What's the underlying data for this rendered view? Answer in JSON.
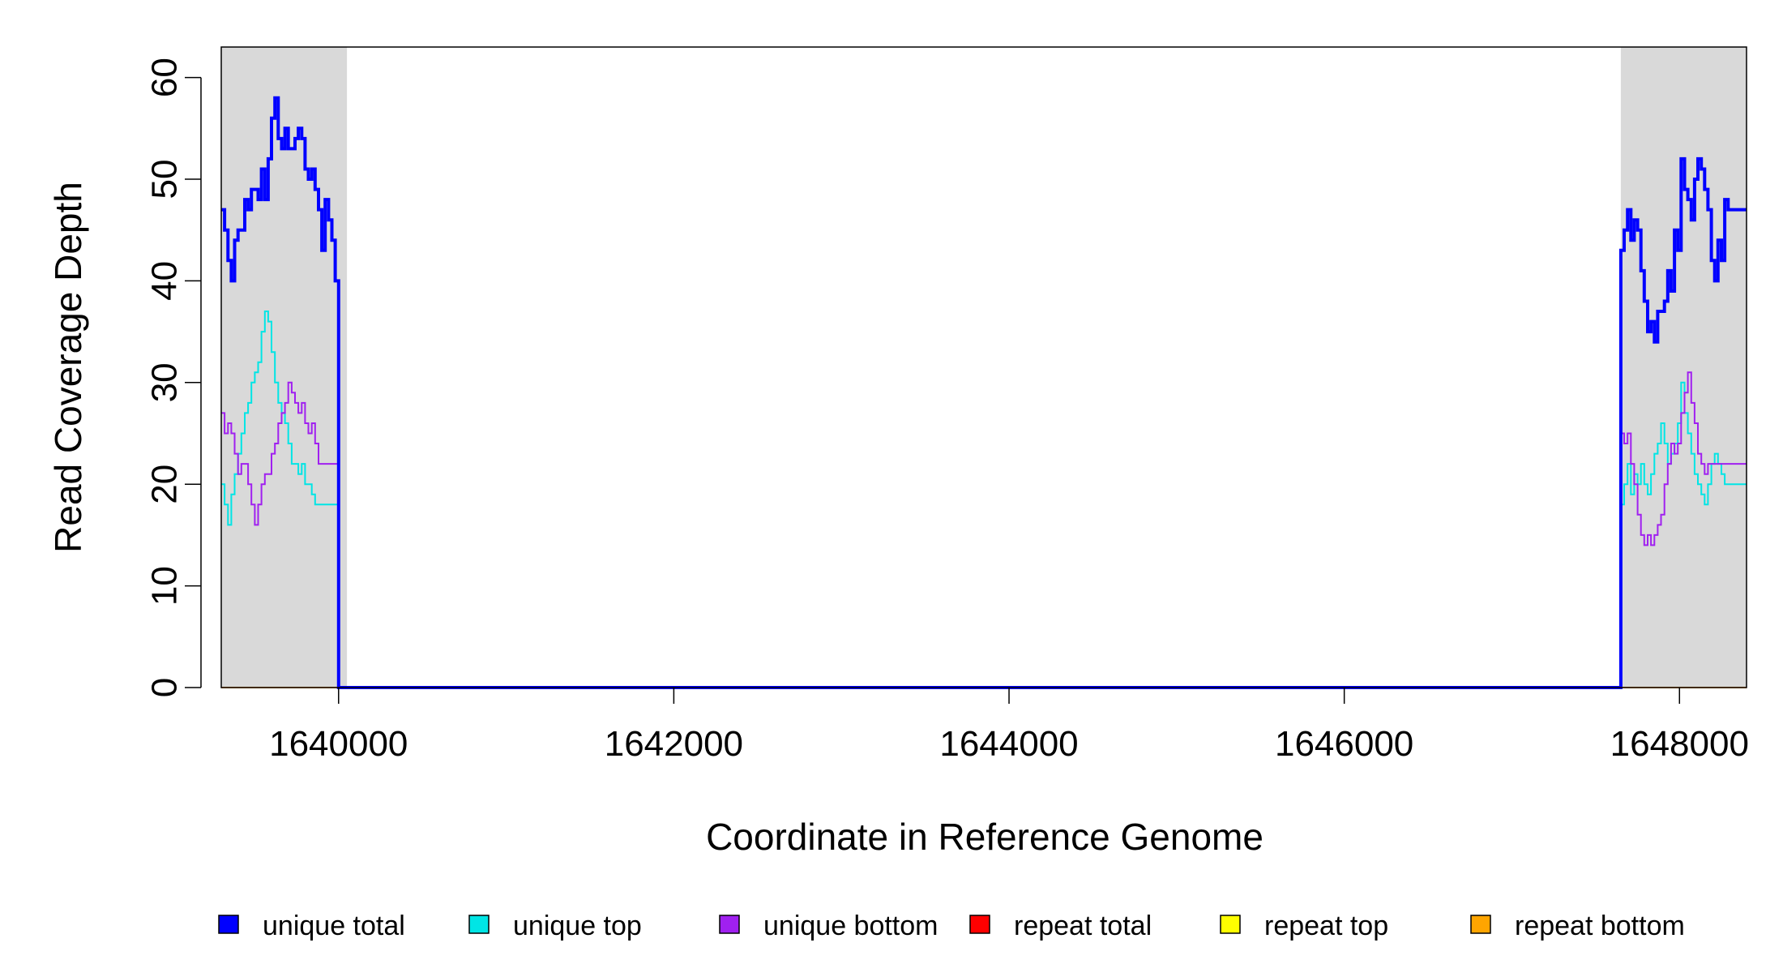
{
  "chart_data": {
    "type": "line",
    "step": true,
    "title": "",
    "xlabel": "Coordinate in Reference Genome",
    "ylabel": "Read Coverage Depth",
    "xlim": [
      1639300,
      1648400
    ],
    "ylim": [
      0,
      63
    ],
    "x_ticks": [
      1640000,
      1642000,
      1644000,
      1646000,
      1648000
    ],
    "x_tick_labels": [
      "1640000",
      "1642000",
      "1644000",
      "1646000",
      "1648000"
    ],
    "y_ticks": [
      0,
      10,
      20,
      30,
      40,
      50,
      60
    ],
    "y_tick_labels": [
      "0",
      "10",
      "20",
      "30",
      "40",
      "50",
      "60"
    ],
    "grid": false,
    "legend_position": "bottom",
    "shaded_regions": [
      [
        1639300,
        1640050
      ],
      [
        1647650,
        1648400
      ]
    ],
    "shaded_color": "#d9d9d9",
    "series": [
      {
        "name": "unique total",
        "color": "#0000ff",
        "x": [
          1639300,
          1639320,
          1639340,
          1639360,
          1639380,
          1639400,
          1639420,
          1639440,
          1639460,
          1639480,
          1639500,
          1639520,
          1639540,
          1639560,
          1639580,
          1639600,
          1639620,
          1639640,
          1639660,
          1639680,
          1639700,
          1639720,
          1639740,
          1639760,
          1639780,
          1639800,
          1639820,
          1639840,
          1639860,
          1639880,
          1639900,
          1639920,
          1639940,
          1639960,
          1639980,
          1640000,
          1640020,
          1640040,
          1640060,
          1640070,
          1647650,
          1647670,
          1647690,
          1647710,
          1647730,
          1647750,
          1647770,
          1647790,
          1647810,
          1647830,
          1647850,
          1647870,
          1647890,
          1647910,
          1647930,
          1647950,
          1647970,
          1647990,
          1648010,
          1648030,
          1648050,
          1648070,
          1648090,
          1648110,
          1648130,
          1648150,
          1648170,
          1648190,
          1648210,
          1648230,
          1648250,
          1648270,
          1648290,
          1648310,
          1648330,
          1648350,
          1648370,
          1648390
        ],
        "y": [
          47,
          45,
          42,
          40,
          44,
          45,
          45,
          48,
          47,
          49,
          49,
          48,
          51,
          48,
          52,
          56,
          58,
          54,
          53,
          55,
          53,
          53,
          54,
          55,
          54,
          51,
          50,
          51,
          49,
          47,
          43,
          48,
          46,
          44,
          40,
          0,
          0,
          0,
          0,
          0,
          43,
          45,
          47,
          44,
          46,
          45,
          41,
          38,
          35,
          36,
          34,
          37,
          37,
          38,
          41,
          39,
          45,
          43,
          52,
          49,
          48,
          46,
          50,
          52,
          51,
          49,
          47,
          42,
          40,
          44,
          42,
          48,
          47,
          47,
          47,
          47,
          47,
          47
        ]
      },
      {
        "name": "unique top",
        "color": "#00e5e5",
        "x": [
          1639300,
          1639320,
          1639340,
          1639360,
          1639380,
          1639400,
          1639420,
          1639440,
          1639460,
          1639480,
          1639500,
          1639520,
          1639540,
          1639560,
          1639580,
          1639600,
          1639620,
          1639640,
          1639660,
          1639680,
          1639700,
          1639720,
          1639740,
          1639760,
          1639780,
          1639800,
          1639820,
          1639840,
          1639860,
          1639880,
          1639900,
          1639920,
          1639940,
          1639960,
          1639980,
          1640000,
          1640020,
          1640040,
          1640060,
          1640070,
          1647650,
          1647670,
          1647690,
          1647710,
          1647730,
          1647750,
          1647770,
          1647790,
          1647810,
          1647830,
          1647850,
          1647870,
          1647890,
          1647910,
          1647930,
          1647950,
          1647970,
          1647990,
          1648010,
          1648030,
          1648050,
          1648070,
          1648090,
          1648110,
          1648130,
          1648150,
          1648170,
          1648190,
          1648210,
          1648230,
          1648250,
          1648270,
          1648290,
          1648310,
          1648330,
          1648350,
          1648370,
          1648390
        ],
        "y": [
          20,
          18,
          16,
          19,
          21,
          23,
          25,
          27,
          28,
          30,
          31,
          32,
          35,
          37,
          36,
          33,
          30,
          28,
          27,
          26,
          24,
          22,
          22,
          21,
          22,
          20,
          20,
          19,
          18,
          18,
          18,
          18,
          18,
          18,
          18,
          0,
          0,
          0,
          0,
          0,
          18,
          20,
          22,
          19,
          21,
          20,
          22,
          20,
          19,
          21,
          23,
          24,
          26,
          24,
          22,
          23,
          24,
          26,
          30,
          27,
          25,
          23,
          21,
          20,
          19,
          18,
          20,
          22,
          23,
          22,
          21,
          20,
          20,
          20,
          20,
          20,
          20,
          20
        ]
      },
      {
        "name": "unique bottom",
        "color": "#a020f0",
        "x": [
          1639300,
          1639320,
          1639340,
          1639360,
          1639380,
          1639400,
          1639420,
          1639440,
          1639460,
          1639480,
          1639500,
          1639520,
          1639540,
          1639560,
          1639580,
          1639600,
          1639620,
          1639640,
          1639660,
          1639680,
          1639700,
          1639720,
          1639740,
          1639760,
          1639780,
          1639800,
          1639820,
          1639840,
          1639860,
          1639880,
          1639900,
          1639920,
          1639940,
          1639960,
          1639980,
          1640000,
          1640020,
          1640040,
          1640060,
          1640070,
          1647650,
          1647670,
          1647690,
          1647710,
          1647730,
          1647750,
          1647770,
          1647790,
          1647810,
          1647830,
          1647850,
          1647870,
          1647890,
          1647910,
          1647930,
          1647950,
          1647970,
          1647990,
          1648010,
          1648030,
          1648050,
          1648070,
          1648090,
          1648110,
          1648130,
          1648150,
          1648170,
          1648190,
          1648210,
          1648230,
          1648250,
          1648270,
          1648290,
          1648310,
          1648330,
          1648350,
          1648370,
          1648390
        ],
        "y": [
          27,
          25,
          26,
          25,
          23,
          21,
          22,
          22,
          20,
          18,
          16,
          18,
          20,
          21,
          21,
          23,
          24,
          26,
          27,
          28,
          30,
          29,
          28,
          27,
          28,
          26,
          25,
          26,
          24,
          22,
          22,
          22,
          22,
          22,
          22,
          0,
          0,
          0,
          0,
          0,
          25,
          24,
          25,
          22,
          20,
          17,
          15,
          14,
          15,
          14,
          15,
          16,
          17,
          20,
          22,
          24,
          23,
          24,
          27,
          29,
          31,
          28,
          26,
          23,
          22,
          21,
          22,
          22,
          22,
          22,
          22,
          22,
          22,
          22,
          22,
          22,
          22,
          22
        ]
      },
      {
        "name": "repeat total",
        "color": "#ff0000",
        "x": [
          1639300,
          1648400
        ],
        "y": [
          0,
          0
        ]
      },
      {
        "name": "repeat top",
        "color": "#ffff00",
        "x": [
          1639300,
          1648400
        ],
        "y": [
          0,
          0
        ]
      },
      {
        "name": "repeat bottom",
        "color": "#ffa500",
        "x": [
          1639300,
          1648400
        ],
        "y": [
          0,
          0
        ]
      }
    ]
  }
}
